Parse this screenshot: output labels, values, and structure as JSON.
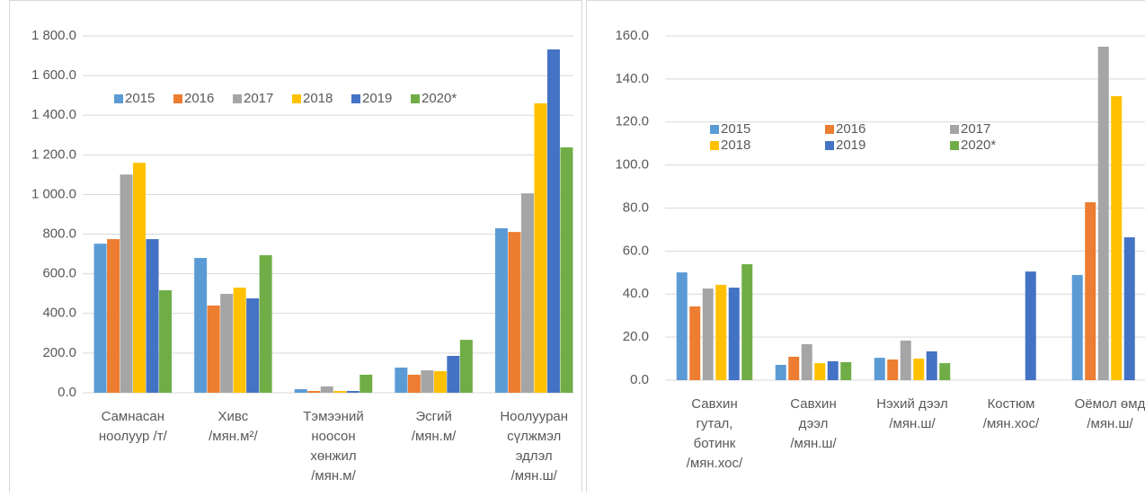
{
  "chart_data": [
    {
      "type": "bar",
      "categories": [
        [
          "Самнасан",
          "ноолуур /т/"
        ],
        [
          "Хивс",
          "/мян.м²/"
        ],
        [
          "Тэмээний",
          "ноосон",
          "хөнжил",
          "/мян.м/"
        ],
        [
          "Эсгий",
          "/мян.м/"
        ],
        [
          "Ноолууран",
          "сүлжмэл",
          "эдлэл",
          "/мян.ш/"
        ]
      ],
      "series": [
        {
          "name": "2015",
          "color": "#5B9BD5",
          "values": [
            752,
            680,
            18,
            127,
            830
          ]
        },
        {
          "name": "2016",
          "color": "#ED7D31",
          "values": [
            775,
            440,
            9,
            91,
            811
          ]
        },
        {
          "name": "2017",
          "color": "#A5A5A5",
          "values": [
            1101,
            499,
            32,
            113,
            1006
          ]
        },
        {
          "name": "2018",
          "color": "#FFC000",
          "values": [
            1160,
            530,
            9,
            109,
            1460
          ]
        },
        {
          "name": "2019",
          "color": "#4472C4",
          "values": [
            775,
            476,
            9,
            186,
            1732
          ]
        },
        {
          "name": "2020*",
          "color": "#70AD47",
          "values": [
            517,
            694,
            91,
            267,
            1238
          ]
        }
      ],
      "ylim": [
        0,
        1800
      ],
      "yticks": [
        {
          "value": 0,
          "label": "0.0"
        },
        {
          "value": 200,
          "label": "200.0"
        },
        {
          "value": 400,
          "label": "400.0"
        },
        {
          "value": 600,
          "label": "600.0"
        },
        {
          "value": 800,
          "label": "800.0"
        },
        {
          "value": 1000,
          "label": "1 000.0"
        },
        {
          "value": 1200,
          "label": "1 200.0"
        },
        {
          "value": 1400,
          "label": "1 400.0"
        },
        {
          "value": 1600,
          "label": "1 600.0"
        },
        {
          "value": 1800,
          "label": "1 800.0"
        }
      ],
      "grid": true
    },
    {
      "type": "bar",
      "categories": [
        [
          "Савхин",
          "гутал,",
          "ботинк",
          "/мян.хос/"
        ],
        [
          "Савхин",
          "дээл",
          "/мян.ш/"
        ],
        [
          "Нэхий дээл",
          "/мян.ш/"
        ],
        [
          "Костюм",
          "/мян.хос/"
        ],
        [
          "Оёмол өмд",
          "/мян.ш/"
        ]
      ],
      "series": [
        {
          "name": "2015",
          "color": "#5B9BD5",
          "values": [
            50.1,
            7.1,
            10.4,
            null,
            48.9
          ]
        },
        {
          "name": "2016",
          "color": "#ED7D31",
          "values": [
            34.3,
            10.9,
            9.6,
            null,
            82.7
          ]
        },
        {
          "name": "2017",
          "color": "#A5A5A5",
          "values": [
            42.6,
            16.7,
            18.4,
            null,
            155
          ]
        },
        {
          "name": "2018",
          "color": "#FFC000",
          "values": [
            44.3,
            7.9,
            10.0,
            null,
            132
          ]
        },
        {
          "name": "2019",
          "color": "#4472C4",
          "values": [
            43.0,
            8.8,
            13.4,
            50.5,
            66.4
          ]
        },
        {
          "name": "2020*",
          "color": "#70AD47",
          "values": [
            53.9,
            8.4,
            7.9,
            null,
            null
          ]
        }
      ],
      "ylim": [
        0,
        160
      ],
      "yticks": [
        {
          "value": 0,
          "label": "0.0"
        },
        {
          "value": 20,
          "label": "20.0"
        },
        {
          "value": 40,
          "label": "40.0"
        },
        {
          "value": 60,
          "label": "60.0"
        },
        {
          "value": 80,
          "label": "80.0"
        },
        {
          "value": 100,
          "label": "100.0"
        },
        {
          "value": 120,
          "label": "120.0"
        },
        {
          "value": 140,
          "label": "140.0"
        },
        {
          "value": 160,
          "label": "160.0"
        }
      ],
      "grid": true
    }
  ]
}
